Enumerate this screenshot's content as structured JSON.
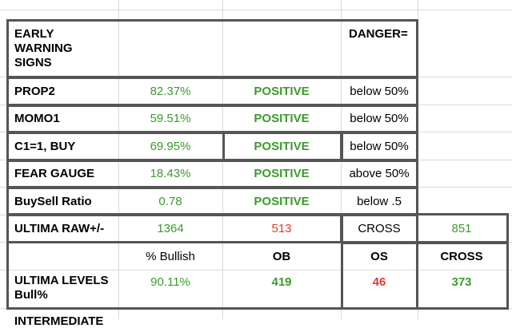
{
  "rows": {
    "header": {
      "label": "EARLY WARNING SIGNS",
      "danger": "DANGER="
    },
    "prop2": {
      "label": "PROP2",
      "value": "82.37%",
      "status": "POSITIVE",
      "threshold": "below 50%"
    },
    "momo1": {
      "label": "MOMO1",
      "value": "59.51%",
      "status": "POSITIVE",
      "threshold": "below 50%"
    },
    "c1buy": {
      "label": "C1=1, BUY",
      "value": "69.95%",
      "status": "POSITIVE",
      "threshold": "below 50%"
    },
    "fear": {
      "label": "FEAR GAUGE",
      "value": "18.43%",
      "status": "POSITIVE",
      "threshold": "above 50%"
    },
    "buysell": {
      "label": "BuySell Ratio",
      "value": "0.78",
      "status": "POSITIVE",
      "threshold": "below .5"
    },
    "ultima_raw": {
      "label": "ULTIMA RAW+/-",
      "value": "1364",
      "red_value": "513",
      "cross_label": "CROSS",
      "cross_value": "851"
    },
    "levels_header": {
      "bullish": "% Bullish",
      "ob": "OB",
      "os": "OS",
      "cross": "CROSS"
    },
    "ultima_levels": {
      "label": "ULTIMA LEVELS Bull%",
      "bullish": "90.11%",
      "ob": "419",
      "os": "46",
      "cross": "373"
    },
    "next_partial": "INTERMEDIATE"
  }
}
